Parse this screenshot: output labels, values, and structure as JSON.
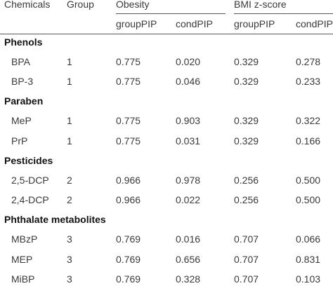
{
  "header": {
    "chemicals": "Chemicals",
    "group": "Group",
    "obesity": "Obesity",
    "bmi": "BMI z-score",
    "sub": [
      "groupPIP",
      "condPIP",
      "groupPIP",
      "condPIP"
    ]
  },
  "sections": [
    {
      "title": "Phenols",
      "rows": [
        {
          "chem": "BPA",
          "group": "1",
          "ob_g": "0.775",
          "ob_c": "0.020",
          "bmi_g": "0.329",
          "bmi_c": "0.278"
        },
        {
          "chem": "BP-3",
          "group": "1",
          "ob_g": "0.775",
          "ob_c": "0.046",
          "bmi_g": "0.329",
          "bmi_c": "0.233"
        }
      ]
    },
    {
      "title": "Paraben",
      "rows": [
        {
          "chem": "MeP",
          "group": "1",
          "ob_g": "0.775",
          "ob_c": "0.903",
          "bmi_g": "0.329",
          "bmi_c": "0.322"
        },
        {
          "chem": "PrP",
          "group": "1",
          "ob_g": "0.775",
          "ob_c": "0.031",
          "bmi_g": "0.329",
          "bmi_c": "0.166"
        }
      ]
    },
    {
      "title": "Pesticides",
      "rows": [
        {
          "chem": "2,5-DCP",
          "group": "2",
          "ob_g": "0.966",
          "ob_c": "0.978",
          "bmi_g": "0.256",
          "bmi_c": "0.500"
        },
        {
          "chem": "2,4-DCP",
          "group": "2",
          "ob_g": "0.966",
          "ob_c": "0.022",
          "bmi_g": "0.256",
          "bmi_c": "0.500"
        }
      ]
    },
    {
      "title": "Phthalate metabolites",
      "rows": [
        {
          "chem": "MBzP",
          "group": "3",
          "ob_g": "0.769",
          "ob_c": "0.016",
          "bmi_g": "0.707",
          "bmi_c": "0.066"
        },
        {
          "chem": "MEP",
          "group": "3",
          "ob_g": "0.769",
          "ob_c": "0.656",
          "bmi_g": "0.707",
          "bmi_c": "0.831"
        },
        {
          "chem": "MiBP",
          "group": "3",
          "ob_g": "0.769",
          "ob_c": "0.328",
          "bmi_g": "0.707",
          "bmi_c": "0.103"
        }
      ]
    }
  ]
}
